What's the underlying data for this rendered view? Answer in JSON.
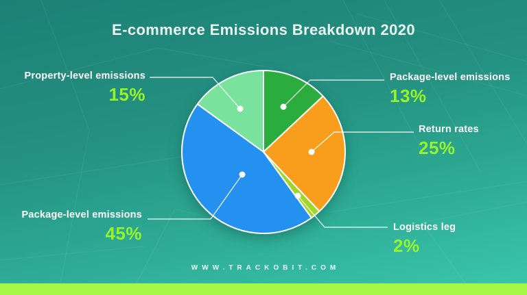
{
  "page": {
    "watermark": "WWW.TRACKOBIT.COM",
    "colors": {
      "background_top": "#1d8076",
      "background_bottom": "#3cc7af",
      "title_text": "#e8f7f1",
      "label_text": "#ffffff",
      "percent_text": "#97f42b",
      "bottom_bar": "#a6f744",
      "leader_line": "#ffffff",
      "slice_border": "#ffffff"
    }
  },
  "chart_data": {
    "type": "pie",
    "title": "E-commerce Emissions Breakdown 2020",
    "direction": "clockwise",
    "start_angle_deg": 0,
    "total": 100,
    "legend_position": "callout-labels",
    "slices": [
      {
        "label": "Package-level emissions",
        "value": 13,
        "pct": "13%",
        "color": "#2bad3e"
      },
      {
        "label": "Return rates",
        "value": 25,
        "pct": "25%",
        "color": "#f99d1d"
      },
      {
        "label": "Logistics leg",
        "value": 2,
        "pct": "2%",
        "color": "#9fd629"
      },
      {
        "label": "Package-level emissions",
        "value": 45,
        "pct": "45%",
        "color": "#2491f0"
      },
      {
        "label": "Property-level emissions",
        "value": 15,
        "pct": "15%",
        "color": "#79e29d"
      }
    ]
  }
}
